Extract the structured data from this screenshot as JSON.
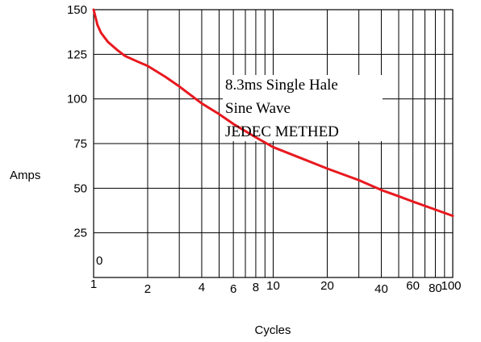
{
  "chart_data": {
    "type": "line",
    "title": "",
    "xlabel": "Cycles",
    "ylabel": "Amps",
    "xscale": "log",
    "xlim": [
      1,
      100
    ],
    "ylim": [
      0,
      150
    ],
    "grid": true,
    "x_ticks": [
      "1",
      "2",
      "4",
      "6",
      "8",
      "10",
      "20",
      "40",
      "60",
      "80",
      "100"
    ],
    "y_ticks": [
      "150",
      "125",
      "100",
      "75",
      "50",
      "25",
      "0"
    ],
    "annotation": [
      "8.3ms Single Hale",
      "Sine Wave",
      "JEDEC METHED"
    ],
    "series": [
      {
        "color": "#e8191f",
        "x": [
          1,
          1.05,
          1.1,
          1.2,
          1.35,
          1.5,
          1.75,
          2,
          2.5,
          3,
          4,
          5,
          6,
          8,
          10,
          15,
          20,
          30,
          40,
          50,
          60,
          80,
          100
        ],
        "y": [
          150,
          141.5,
          137,
          132,
          127.5,
          124,
          121,
          118.5,
          112.5,
          107,
          97.5,
          91.5,
          86,
          78.5,
          73,
          66,
          61,
          54.5,
          49,
          45.5,
          42.5,
          38,
          34.5
        ]
      }
    ]
  }
}
